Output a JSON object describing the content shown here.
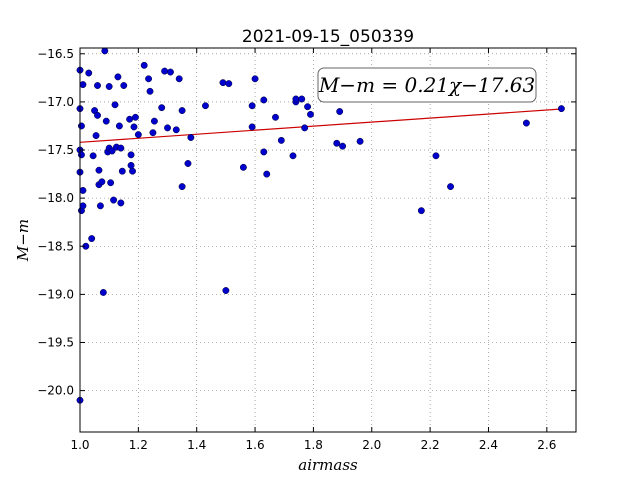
{
  "chart_data": {
    "type": "scatter",
    "title": "2021-09-15_050339",
    "xlabel": "airmass",
    "ylabel": "M−m",
    "xlim": [
      1.0,
      2.7
    ],
    "ylim": [
      -20.43,
      -16.44
    ],
    "y_inverted": true,
    "grid": true,
    "xticks": [
      1.0,
      1.2,
      1.4,
      1.6,
      1.8,
      2.0,
      2.2,
      2.4,
      2.6
    ],
    "yticks": [
      -16.5,
      -17.0,
      -17.5,
      -18.0,
      -18.5,
      -19.0,
      -19.5,
      -20.0
    ],
    "annotation": "M−m = 0.21χ−17.63",
    "marker_color": "#0000cc",
    "fit_color": "#cc0000",
    "fit": {
      "slope": 0.21,
      "intercept": -17.63
    },
    "points": [
      [
        1.0,
        -16.67
      ],
      [
        1.0,
        -17.07
      ],
      [
        1.005,
        -17.25
      ],
      [
        1.0,
        -17.5
      ],
      [
        1.005,
        -17.55
      ],
      [
        1.0,
        -17.73
      ],
      [
        1.005,
        -18.13
      ],
      [
        1.01,
        -18.08
      ],
      [
        1.0,
        -20.1
      ],
      [
        1.01,
        -16.82
      ],
      [
        1.01,
        -17.92
      ],
      [
        1.02,
        -18.5
      ],
      [
        1.03,
        -16.7
      ],
      [
        1.04,
        -18.42
      ],
      [
        1.045,
        -17.56
      ],
      [
        1.05,
        -17.09
      ],
      [
        1.055,
        -17.35
      ],
      [
        1.06,
        -16.83
      ],
      [
        1.06,
        -17.14
      ],
      [
        1.065,
        -17.86
      ],
      [
        1.065,
        -17.71
      ],
      [
        1.07,
        -18.08
      ],
      [
        1.075,
        -17.83
      ],
      [
        1.08,
        -18.98
      ],
      [
        1.085,
        -16.47
      ],
      [
        1.09,
        -17.2
      ],
      [
        1.095,
        -17.52
      ],
      [
        1.1,
        -16.84
      ],
      [
        1.1,
        -17.48
      ],
      [
        1.105,
        -17.84
      ],
      [
        1.11,
        -17.51
      ],
      [
        1.115,
        -18.02
      ],
      [
        1.12,
        -17.03
      ],
      [
        1.125,
        -17.47
      ],
      [
        1.13,
        -16.74
      ],
      [
        1.135,
        -17.25
      ],
      [
        1.14,
        -17.48
      ],
      [
        1.14,
        -18.05
      ],
      [
        1.145,
        -17.72
      ],
      [
        1.15,
        -16.83
      ],
      [
        1.17,
        -17.18
      ],
      [
        1.175,
        -17.55
      ],
      [
        1.175,
        -17.66
      ],
      [
        1.18,
        -17.72
      ],
      [
        1.185,
        -17.26
      ],
      [
        1.19,
        -17.16
      ],
      [
        1.2,
        -17.34
      ],
      [
        1.22,
        -16.62
      ],
      [
        1.235,
        -16.76
      ],
      [
        1.24,
        -16.89
      ],
      [
        1.25,
        -17.32
      ],
      [
        1.255,
        -17.2
      ],
      [
        1.28,
        -17.06
      ],
      [
        1.29,
        -16.68
      ],
      [
        1.3,
        -17.27
      ],
      [
        1.31,
        -16.69
      ],
      [
        1.33,
        -17.29
      ],
      [
        1.34,
        -16.76
      ],
      [
        1.35,
        -17.09
      ],
      [
        1.35,
        -17.88
      ],
      [
        1.37,
        -17.64
      ],
      [
        1.38,
        -17.37
      ],
      [
        1.43,
        -17.04
      ],
      [
        1.49,
        -16.8
      ],
      [
        1.5,
        -18.96
      ],
      [
        1.51,
        -16.81
      ],
      [
        1.56,
        -17.68
      ],
      [
        1.59,
        -17.26
      ],
      [
        1.59,
        -17.04
      ],
      [
        1.6,
        -16.76
      ],
      [
        1.63,
        -16.98
      ],
      [
        1.63,
        -17.52
      ],
      [
        1.64,
        -17.75
      ],
      [
        1.67,
        -17.16
      ],
      [
        1.69,
        -17.4
      ],
      [
        1.73,
        -17.56
      ],
      [
        1.74,
        -17.0
      ],
      [
        1.74,
        -16.97
      ],
      [
        1.76,
        -16.97
      ],
      [
        1.77,
        -17.27
      ],
      [
        1.78,
        -17.05
      ],
      [
        1.79,
        -17.13
      ],
      [
        1.88,
        -17.43
      ],
      [
        1.89,
        -17.1
      ],
      [
        1.9,
        -17.46
      ],
      [
        1.96,
        -17.41
      ],
      [
        2.17,
        -18.13
      ],
      [
        2.22,
        -17.56
      ],
      [
        2.27,
        -17.88
      ],
      [
        2.53,
        -17.22
      ],
      [
        2.65,
        -17.07
      ]
    ]
  }
}
